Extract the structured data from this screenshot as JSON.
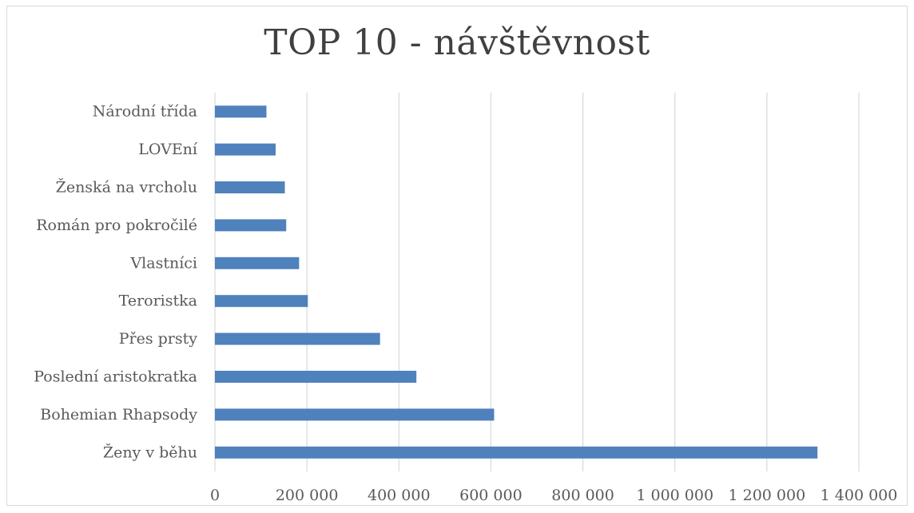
{
  "chart_data": {
    "type": "bar",
    "orientation": "horizontal",
    "title": "TOP 10  - návštěvnost",
    "categories": [
      "Ženy v běhu",
      "Bohemian Rhapsody",
      "Poslední aristokratka",
      "Přes prsty",
      "Teroristka",
      "Vlastníci",
      "Román pro pokročilé",
      "Ženská na vrcholu",
      "LOVEní",
      "Národní třída"
    ],
    "values": [
      1310000,
      607000,
      438000,
      359000,
      202000,
      183000,
      155000,
      152000,
      132000,
      112000
    ],
    "xlim": [
      0,
      1400000
    ],
    "x_ticks": [
      0,
      200000,
      400000,
      600000,
      800000,
      1000000,
      1200000,
      1400000
    ],
    "x_tick_labels": [
      "0",
      "200 000",
      "400 000",
      "600 000",
      "800 000",
      "1 000 000",
      "1 200 000",
      "1 400 000"
    ],
    "grid": "vertical",
    "bar_color": "#4f81bd",
    "grid_color": "#d9d9d9"
  }
}
